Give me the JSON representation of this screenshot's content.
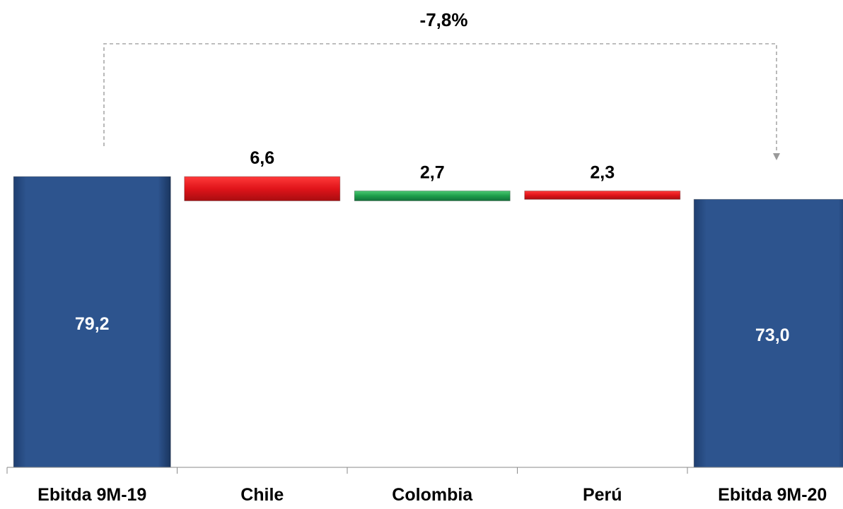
{
  "chart_data": {
    "type": "bar",
    "subtype": "waterfall",
    "title": "",
    "xlabel": "",
    "ylabel": "",
    "ylim": [
      0,
      80
    ],
    "grid": false,
    "categories": [
      "Ebitda 9M-19",
      "Chile",
      "Colombia",
      "Perú",
      "Ebitda 9M-20"
    ],
    "bars": [
      {
        "category": "Ebitda 9M-19",
        "kind": "total",
        "start": 0,
        "end": 79.2,
        "label": "79,2",
        "color": "#2a4f86"
      },
      {
        "category": "Chile",
        "kind": "decrease",
        "start": 79.2,
        "end": 72.6,
        "label": "6,6",
        "color": "#e0141a"
      },
      {
        "category": "Colombia",
        "kind": "increase",
        "start": 72.6,
        "end": 75.3,
        "label": "2,7",
        "color": "#1e9e4a"
      },
      {
        "category": "Perú",
        "kind": "decrease",
        "start": 75.3,
        "end": 73.0,
        "label": "2,3",
        "color": "#e0141a"
      },
      {
        "category": "Ebitda 9M-20",
        "kind": "total",
        "start": 0,
        "end": 73.0,
        "label": "73,0",
        "color": "#2a4f86"
      }
    ],
    "annotation": {
      "text": "-7,8%",
      "from": "Ebitda 9M-19",
      "to": "Ebitda 9M-20"
    }
  }
}
